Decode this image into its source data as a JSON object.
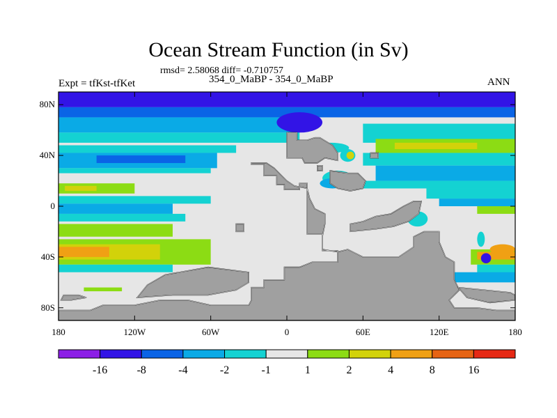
{
  "chart_data": {
    "type": "heatmap",
    "title": "Ocean Stream Function (in Sv)",
    "stats": "rmsd= 2.58068 diff= -0.710757",
    "case_label": "354_0_MaBP - 354_0_MaBP",
    "expt_label": "Expt = tfKst-tfKet",
    "season": "ANN",
    "xlabel": "",
    "ylabel": "",
    "x_ticks": [
      {
        "value": -180,
        "label": "180"
      },
      {
        "value": -120,
        "label": "120W"
      },
      {
        "value": -60,
        "label": "60W"
      },
      {
        "value": 0,
        "label": "0"
      },
      {
        "value": 60,
        "label": "60E"
      },
      {
        "value": 120,
        "label": "120E"
      },
      {
        "value": 180,
        "label": "180"
      }
    ],
    "y_ticks": [
      {
        "value": 80,
        "label": "80N"
      },
      {
        "value": 40,
        "label": "40N"
      },
      {
        "value": 0,
        "label": "0"
      },
      {
        "value": -40,
        "label": "40S"
      },
      {
        "value": -80,
        "label": "80S"
      }
    ],
    "xlim": [
      -180,
      180
    ],
    "ylim": [
      -90,
      90
    ],
    "land_color": "#a0a0a0",
    "colorbar": {
      "colors": [
        "#8c1ee6",
        "#3214e6",
        "#0a64e6",
        "#0aaae6",
        "#14d2d2",
        "#e6e6e6",
        "#8cdc14",
        "#d2d20a",
        "#f0a014",
        "#e66414",
        "#e62814"
      ],
      "labels": [
        "-16",
        "-8",
        "-4",
        "-2",
        "-1",
        "1",
        "2",
        "4",
        "8",
        "16"
      ]
    },
    "bands": [
      {
        "lon0": -180,
        "lon1": 180,
        "lat0": 78,
        "lat1": 90,
        "color": "#3214e6"
      },
      {
        "lon0": -180,
        "lon1": 180,
        "lat0": 70,
        "lat1": 78,
        "color": "#0a64e6"
      },
      {
        "lon0": -180,
        "lon1": 10,
        "lat0": 58,
        "lat1": 70,
        "color": "#0aaae6"
      },
      {
        "lon0": -180,
        "lon1": 10,
        "lat0": 50,
        "lat1": 58,
        "color": "#14d2d2"
      },
      {
        "lon0": 60,
        "lon1": 180,
        "lat0": 50,
        "lat1": 65,
        "color": "#14d2d2"
      },
      {
        "lon0": 70,
        "lon1": 180,
        "lat0": 42,
        "lat1": 53,
        "color": "#8cdc14"
      },
      {
        "lon0": 85,
        "lon1": 150,
        "lat0": 45,
        "lat1": 50,
        "color": "#d2d20a"
      },
      {
        "lon0": 60,
        "lon1": 180,
        "lat0": 32,
        "lat1": 42,
        "color": "#14d2d2"
      },
      {
        "lon0": 70,
        "lon1": 180,
        "lat0": 20,
        "lat1": 32,
        "color": "#0aaae6"
      },
      {
        "lon0": 60,
        "lon1": 180,
        "lat0": 14,
        "lat1": 20,
        "color": "#14d2d2"
      },
      {
        "lon0": -180,
        "lon1": -40,
        "lat0": 42,
        "lat1": 48,
        "color": "#14d2d2"
      },
      {
        "lon0": -180,
        "lon1": -55,
        "lat0": 30,
        "lat1": 42,
        "color": "#0aaae6"
      },
      {
        "lon0": -150,
        "lon1": -80,
        "lat0": 34,
        "lat1": 40,
        "color": "#0a64e6"
      },
      {
        "lon0": -180,
        "lon1": -60,
        "lat0": 26,
        "lat1": 30,
        "color": "#14d2d2"
      },
      {
        "lon0": -180,
        "lon1": -120,
        "lat0": 10,
        "lat1": 18,
        "color": "#8cdc14"
      },
      {
        "lon0": -175,
        "lon1": -150,
        "lat0": 12,
        "lat1": 16,
        "color": "#d2d20a"
      },
      {
        "lon0": -180,
        "lon1": -60,
        "lat0": 2,
        "lat1": 8,
        "color": "#14d2d2"
      },
      {
        "lon0": -180,
        "lon1": -90,
        "lat0": -6,
        "lat1": 2,
        "color": "#0aaae6"
      },
      {
        "lon0": -180,
        "lon1": -80,
        "lat0": -12,
        "lat1": -6,
        "color": "#14d2d2"
      },
      {
        "lon0": -180,
        "lon1": -90,
        "lat0": -24,
        "lat1": -14,
        "color": "#8cdc14"
      },
      {
        "lon0": -180,
        "lon1": -60,
        "lat0": -46,
        "lat1": -26,
        "color": "#8cdc14"
      },
      {
        "lon0": -180,
        "lon1": -100,
        "lat0": -42,
        "lat1": -30,
        "color": "#d2d20a"
      },
      {
        "lon0": -180,
        "lon1": -140,
        "lat0": -40,
        "lat1": -32,
        "color": "#f0a014"
      },
      {
        "lon0": -180,
        "lon1": -90,
        "lat0": -52,
        "lat1": -46,
        "color": "#14d2d2"
      },
      {
        "lon0": -160,
        "lon1": -130,
        "lat0": -67,
        "lat1": -64,
        "color": "#8cdc14"
      },
      {
        "lon0": 110,
        "lon1": 180,
        "lat0": 6,
        "lat1": 14,
        "color": "#14d2d2"
      },
      {
        "lon0": 120,
        "lon1": 180,
        "lat0": 0,
        "lat1": 6,
        "color": "#0aaae6"
      },
      {
        "lon0": 150,
        "lon1": 180,
        "lat0": -6,
        "lat1": 0,
        "color": "#8cdc14"
      },
      {
        "lon0": 145,
        "lon1": 180,
        "lat0": -46,
        "lat1": -34,
        "color": "#8cdc14"
      },
      {
        "lon0": 150,
        "lon1": 180,
        "lat0": -42,
        "lat1": -36,
        "color": "#f0a014"
      },
      {
        "lon0": 150,
        "lon1": 180,
        "lat0": -58,
        "lat1": -46,
        "color": "#14d2d2"
      },
      {
        "lon0": 60,
        "lon1": 180,
        "lat0": -60,
        "lat1": -52,
        "color": "#0aaae6"
      }
    ],
    "blobs": [
      {
        "lon": 10,
        "lat": 66,
        "rlon": 18,
        "rlat": 8,
        "color": "#3214e6"
      },
      {
        "lon": 48,
        "lat": 40,
        "rlon": 6,
        "rlat": 5,
        "color": "#14d2d2"
      },
      {
        "lon": 50,
        "lat": 40,
        "rlon": 3,
        "rlat": 3,
        "color": "#d2d20a"
      },
      {
        "lon": 40,
        "lat": 22,
        "rlon": 12,
        "rlat": 6,
        "color": "#14d2d2"
      },
      {
        "lon": 36,
        "lat": 18,
        "rlon": 10,
        "rlat": 4,
        "color": "#0aaae6"
      },
      {
        "lon": 35,
        "lat": 46,
        "rlon": 14,
        "rlat": 4,
        "color": "#14d2d2"
      },
      {
        "lon": 103,
        "lat": -10,
        "rlon": 8,
        "rlat": 6,
        "color": "#14d2d2"
      },
      {
        "lon": 157,
        "lat": -41,
        "rlon": 4,
        "rlat": 4,
        "color": "#3214e6"
      },
      {
        "lon": 153,
        "lat": -26,
        "rlon": 3,
        "rlat": 6,
        "color": "#14d2d2"
      },
      {
        "lon": 170,
        "lat": -34,
        "rlon": 10,
        "rlat": 4,
        "color": "#f0a014"
      }
    ],
    "land": [
      [
        [
          -28,
          33
        ],
        [
          -18,
          33
        ],
        [
          -18,
          24
        ],
        [
          -8,
          24
        ],
        [
          -8,
          17
        ],
        [
          -2,
          17
        ],
        [
          -2,
          13
        ],
        [
          10,
          13
        ],
        [
          10,
          18
        ],
        [
          16,
          18
        ],
        [
          16,
          -22
        ],
        [
          28,
          -22
        ],
        [
          28,
          -35
        ],
        [
          40,
          -35
        ],
        [
          40,
          -44
        ],
        [
          20,
          -44
        ],
        [
          10,
          -48
        ],
        [
          -2,
          -48
        ],
        [
          -2,
          -58
        ],
        [
          -18,
          -58
        ],
        [
          -18,
          -64
        ],
        [
          -28,
          -64
        ],
        [
          -28,
          -74
        ],
        [
          -30,
          -78
        ],
        [
          -60,
          -78
        ],
        [
          -78,
          -74
        ],
        [
          -100,
          -74
        ],
        [
          -120,
          -78
        ],
        [
          -145,
          -78
        ],
        [
          -155,
          -82
        ],
        [
          -180,
          -82
        ],
        [
          -180,
          -90
        ],
        [
          180,
          -90
        ],
        [
          180,
          -82
        ],
        [
          165,
          -82
        ],
        [
          150,
          -80
        ],
        [
          132,
          -80
        ],
        [
          128,
          -74
        ],
        [
          136,
          -66
        ],
        [
          132,
          -58
        ],
        [
          132,
          -44
        ],
        [
          125,
          -40
        ],
        [
          120,
          -28
        ],
        [
          120,
          -20
        ],
        [
          108,
          -20
        ],
        [
          100,
          -24
        ],
        [
          100,
          -32
        ],
        [
          88,
          -40
        ],
        [
          60,
          -40
        ],
        [
          48,
          -34
        ],
        [
          40,
          -36
        ],
        [
          28,
          -34
        ],
        [
          28,
          -24
        ],
        [
          30,
          -14
        ],
        [
          30,
          -6
        ],
        [
          22,
          -2
        ],
        [
          18,
          6
        ],
        [
          16,
          14
        ],
        [
          6,
          16
        ],
        [
          0,
          20
        ],
        [
          -6,
          26
        ],
        [
          -10,
          30
        ],
        [
          -16,
          34
        ],
        [
          -28,
          34
        ]
      ],
      [
        [
          0,
          58
        ],
        [
          8,
          58
        ],
        [
          8,
          52
        ],
        [
          16,
          52
        ],
        [
          22,
          54
        ],
        [
          26,
          54
        ],
        [
          36,
          48
        ],
        [
          40,
          42
        ],
        [
          40,
          36
        ],
        [
          30,
          38
        ],
        [
          24,
          34
        ],
        [
          14,
          34
        ],
        [
          12,
          38
        ],
        [
          0,
          38
        ]
      ],
      [
        [
          34,
          28
        ],
        [
          48,
          26
        ],
        [
          56,
          26
        ],
        [
          62,
          20
        ],
        [
          60,
          14
        ],
        [
          50,
          12
        ],
        [
          40,
          14
        ],
        [
          34,
          18
        ],
        [
          34,
          22
        ]
      ],
      [
        [
          50,
          -14
        ],
        [
          60,
          -12
        ],
        [
          70,
          -8
        ],
        [
          82,
          -6
        ],
        [
          92,
          0
        ],
        [
          100,
          4
        ],
        [
          106,
          4
        ],
        [
          104,
          -6
        ],
        [
          96,
          -12
        ],
        [
          84,
          -16
        ],
        [
          70,
          -18
        ],
        [
          50,
          -20
        ]
      ],
      [
        [
          -40,
          -14
        ],
        [
          -34,
          -14
        ],
        [
          -34,
          -20
        ],
        [
          -40,
          -20
        ]
      ],
      [
        [
          24,
          32
        ],
        [
          28,
          32
        ],
        [
          28,
          28
        ],
        [
          24,
          28
        ]
      ],
      [
        [
          66,
          42
        ],
        [
          72,
          42
        ],
        [
          72,
          38
        ],
        [
          66,
          38
        ]
      ],
      [
        [
          -30,
          -52
        ],
        [
          -62,
          -48
        ],
        [
          -96,
          -54
        ],
        [
          -110,
          -62
        ],
        [
          -118,
          -72
        ],
        [
          -90,
          -70
        ],
        [
          -62,
          -70
        ],
        [
          -40,
          -66
        ],
        [
          -30,
          -60
        ]
      ],
      [
        [
          135,
          -64
        ],
        [
          156,
          -66
        ],
        [
          176,
          -68
        ],
        [
          180,
          -70
        ],
        [
          180,
          -74
        ],
        [
          160,
          -76
        ],
        [
          142,
          -72
        ]
      ],
      [
        [
          -176,
          -70
        ],
        [
          -164,
          -70
        ],
        [
          -158,
          -72
        ],
        [
          -170,
          -74
        ],
        [
          -178,
          -74
        ]
      ]
    ]
  }
}
